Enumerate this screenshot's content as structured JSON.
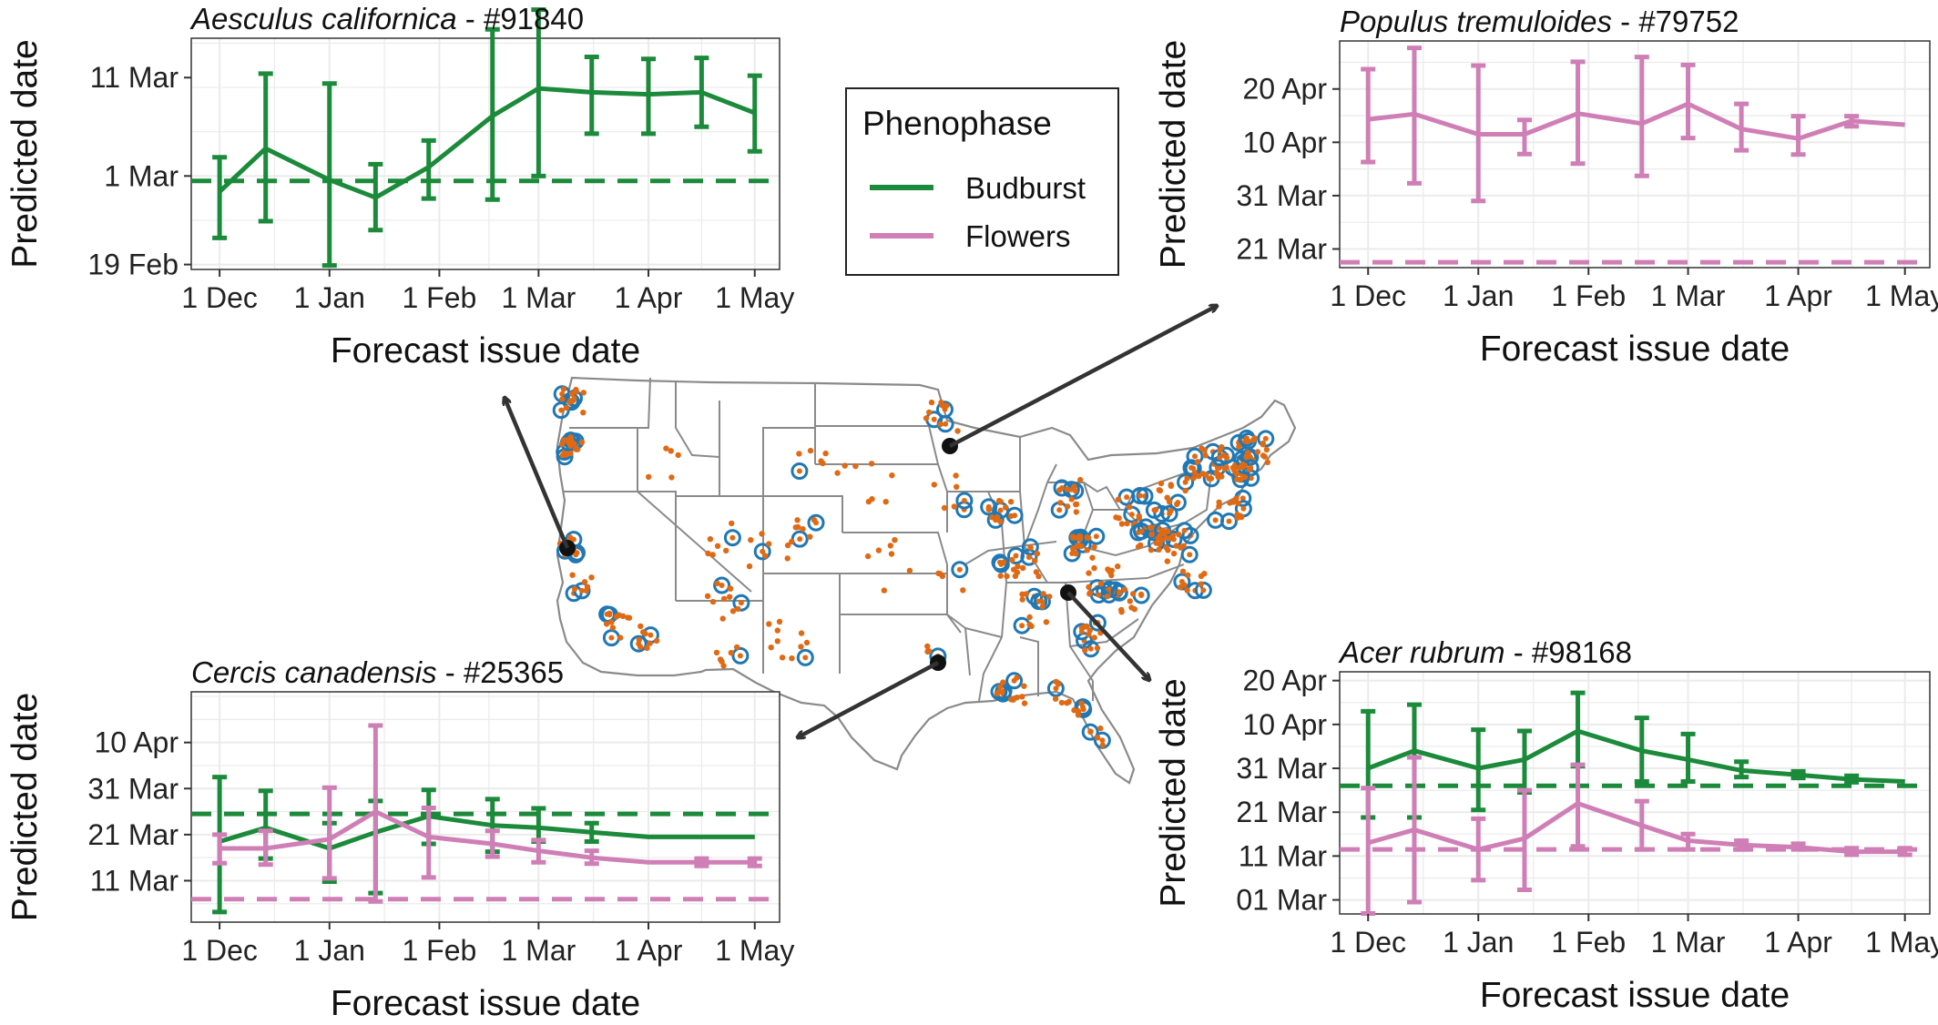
{
  "legend": {
    "title": "Phenophase",
    "items": [
      {
        "label": "Budburst",
        "color": "#1b8a3a"
      },
      {
        "label": "Flowers",
        "color": "#cf7fb6"
      }
    ]
  },
  "colors": {
    "budburst": "#1b8a3a",
    "flowers": "#cf7fb6",
    "site_dot": "#e06a14",
    "site_ring": "#1f78b4",
    "arrow": "#333333",
    "state_border": "#8a8a8a",
    "grid": "#ebebeb",
    "panel_border": "#333333"
  },
  "map": {
    "highlight_sites": [
      "Aesculus californica #91840",
      "Populus tremuloides #79752",
      "Cercis canadensis #25365",
      "Acer rubrum #98168"
    ]
  },
  "chart_data": [
    {
      "type": "line",
      "title_species": "Aesculus californica",
      "title_id": " - #91840",
      "xlabel": "Forecast issue date",
      "ylabel": "Predicted date",
      "x_ticks": [
        "1 Dec",
        "1 Jan",
        "1 Feb",
        "1 Mar",
        "1 Apr",
        "1 May"
      ],
      "x_tick_days": [
        0,
        31,
        62,
        90,
        121,
        151
      ],
      "xlim": [
        -8,
        158
      ],
      "y_ticks": [
        "19 Feb",
        "1 Mar",
        "11 Mar"
      ],
      "y_tick_days": [
        81,
        90,
        100
      ],
      "ylim": [
        80.5,
        104
      ],
      "series": [
        {
          "name": "Budburst",
          "color_key": "budburst",
          "points": [
            {
              "x": 0,
              "y": 88.4,
              "lo": 83.7,
              "hi": 91.9
            },
            {
              "x": 13,
              "y": 92.8,
              "lo": 85.4,
              "hi": 100.4
            },
            {
              "x": 31,
              "y": 89.6,
              "lo": 80.9,
              "hi": 99.4
            },
            {
              "x": 44,
              "y": 87.8,
              "lo": 84.5,
              "hi": 91.2
            },
            {
              "x": 59,
              "y": 90.9,
              "lo": 87.7,
              "hi": 93.6
            },
            {
              "x": 77,
              "y": 96.1,
              "lo": 87.6,
              "hi": 104.9
            },
            {
              "x": 90,
              "y": 98.9,
              "lo": 90.0,
              "hi": 106.9
            },
            {
              "x": 105,
              "y": 98.5,
              "lo": 94.3,
              "hi": 102.1
            },
            {
              "x": 121,
              "y": 98.3,
              "lo": 94.3,
              "hi": 101.9
            },
            {
              "x": 136,
              "y": 98.5,
              "lo": 95.0,
              "hi": 102.0
            },
            {
              "x": 151,
              "y": 96.4,
              "lo": 92.5,
              "hi": 100.2
            }
          ],
          "observed": 89.5
        }
      ]
    },
    {
      "type": "line",
      "title_species": "Populus tremuloides",
      "title_id": " - #79752",
      "xlabel": "Forecast issue date",
      "ylabel": "Predicted date",
      "x_ticks": [
        "1 Dec",
        "1 Jan",
        "1 Feb",
        "1 Mar",
        "1 Apr",
        "1 May"
      ],
      "x_tick_days": [
        0,
        31,
        62,
        90,
        121,
        151
      ],
      "xlim": [
        -8,
        158
      ],
      "y_ticks": [
        "21 Mar",
        "31 Mar",
        "10 Apr",
        "20 Apr"
      ],
      "y_tick_days": [
        110,
        120,
        130,
        140
      ],
      "ylim": [
        106.5,
        149
      ],
      "series": [
        {
          "name": "Flowers",
          "color_key": "flowers",
          "points": [
            {
              "x": 0,
              "y": 134.3,
              "lo": 126.3,
              "hi": 143.7
            },
            {
              "x": 13,
              "y": 135.3,
              "lo": 122.3,
              "hi": 147.7
            },
            {
              "x": 31,
              "y": 131.5,
              "lo": 119.0,
              "hi": 144.4
            },
            {
              "x": 44,
              "y": 131.5,
              "lo": 127.8,
              "hi": 134.2
            },
            {
              "x": 59,
              "y": 135.4,
              "lo": 126.0,
              "hi": 145.1
            },
            {
              "x": 77,
              "y": 133.5,
              "lo": 123.7,
              "hi": 146.0
            },
            {
              "x": 90,
              "y": 137.2,
              "lo": 130.8,
              "hi": 144.5
            },
            {
              "x": 105,
              "y": 132.5,
              "lo": 128.5,
              "hi": 137.2
            },
            {
              "x": 121,
              "y": 130.7,
              "lo": 127.7,
              "hi": 134.9
            },
            {
              "x": 136,
              "y": 134.0,
              "lo": 133.0,
              "hi": 134.9
            },
            {
              "x": 151,
              "y": 133.3
            }
          ],
          "observed": 107.5
        }
      ]
    },
    {
      "type": "line",
      "title_species": "Cercis canadensis",
      "title_id": " - #25365",
      "xlabel": "Forecast issue date",
      "ylabel": "Predicted date",
      "x_ticks": [
        "1 Dec",
        "1 Jan",
        "1 Feb",
        "1 Mar",
        "1 Apr",
        "1 May"
      ],
      "x_tick_days": [
        0,
        31,
        62,
        90,
        121,
        151
      ],
      "xlim": [
        -8,
        158
      ],
      "y_ticks": [
        "11 Mar",
        "21 Mar",
        "31 Mar",
        "10 Apr"
      ],
      "y_tick_days": [
        100,
        110,
        120,
        130
      ],
      "ylim": [
        91,
        141
      ],
      "series": [
        {
          "name": "Budburst",
          "color_key": "budburst",
          "points": [
            {
              "x": 0,
              "y": 108.5,
              "lo": 93.2,
              "hi": 122.5
            },
            {
              "x": 13,
              "y": 111.5,
              "lo": 104.8,
              "hi": 119.5
            },
            {
              "x": 31,
              "y": 107.0,
              "lo": 99.8,
              "hi": 112.5
            },
            {
              "x": 44,
              "y": 110.5,
              "lo": 97.3,
              "hi": 117.3
            },
            {
              "x": 59,
              "y": 114.0,
              "lo": 108.0,
              "hi": 119.7
            },
            {
              "x": 77,
              "y": 112.0,
              "lo": 106.3,
              "hi": 117.7
            },
            {
              "x": 90,
              "y": 111.5,
              "lo": 108.5,
              "hi": 115.7
            },
            {
              "x": 105,
              "y": 110.5,
              "lo": 108.5,
              "hi": 112.5
            },
            {
              "x": 121,
              "y": 109.5
            },
            {
              "x": 151,
              "y": 109.5
            }
          ],
          "observed": 114.5
        },
        {
          "name": "Flowers",
          "color_key": "flowers",
          "points": [
            {
              "x": 0,
              "y": 107.0,
              "lo": 103.8,
              "hi": 110.0
            },
            {
              "x": 13,
              "y": 107.0,
              "lo": 103.5,
              "hi": 110.8
            },
            {
              "x": 31,
              "y": 109.0,
              "lo": 100.5,
              "hi": 120.2
            },
            {
              "x": 44,
              "y": 115.0,
              "lo": 95.5,
              "hi": 133.7
            },
            {
              "x": 59,
              "y": 109.5,
              "lo": 100.7,
              "hi": 115.8
            },
            {
              "x": 77,
              "y": 108.0,
              "lo": 105.2,
              "hi": 110.8
            },
            {
              "x": 90,
              "y": 106.5,
              "lo": 104.0,
              "hi": 108.8
            },
            {
              "x": 105,
              "y": 105.0,
              "lo": 103.7,
              "hi": 106.5
            },
            {
              "x": 121,
              "y": 104.0
            },
            {
              "x": 136,
              "y": 104.0,
              "lo": 103.2,
              "hi": 104.8
            },
            {
              "x": 151,
              "y": 104.0,
              "lo": 103.2,
              "hi": 104.8
            }
          ],
          "observed": 96.0
        }
      ]
    },
    {
      "type": "line",
      "title_species": "Acer rubrum",
      "title_id": " - #98168",
      "xlabel": "Forecast issue date",
      "ylabel": "Predicted date",
      "x_ticks": [
        "1 Dec",
        "1 Jan",
        "1 Feb",
        "1 Mar",
        "1 Apr",
        "1 May"
      ],
      "x_tick_days": [
        0,
        31,
        62,
        90,
        121,
        151
      ],
      "xlim": [
        -8,
        158
      ],
      "y_ticks": [
        "01 Mar",
        "11 Mar",
        "21 Mar",
        "31 Mar",
        "10 Apr",
        "20 Apr"
      ],
      "y_tick_days": [
        90,
        100,
        110,
        120,
        130,
        140
      ],
      "ylim": [
        86.8,
        142
      ],
      "series": [
        {
          "name": "Budburst",
          "color_key": "budburst",
          "points": [
            {
              "x": 0,
              "y": 120.0,
              "lo": 108.8,
              "hi": 133.0
            },
            {
              "x": 13,
              "y": 124.0,
              "lo": 108.8,
              "hi": 134.5
            },
            {
              "x": 31,
              "y": 120.0,
              "lo": 110.5,
              "hi": 128.8
            },
            {
              "x": 44,
              "y": 122.0,
              "lo": 114.5,
              "hi": 128.5
            },
            {
              "x": 59,
              "y": 128.5,
              "lo": 120.5,
              "hi": 137.2
            },
            {
              "x": 77,
              "y": 124.0,
              "lo": 117.0,
              "hi": 131.5
            },
            {
              "x": 90,
              "y": 122.0,
              "lo": 117.0,
              "hi": 127.8
            },
            {
              "x": 105,
              "y": 119.5,
              "lo": 118.0,
              "hi": 121.5
            },
            {
              "x": 121,
              "y": 118.5,
              "lo": 117.8,
              "hi": 119.3
            },
            {
              "x": 136,
              "y": 117.5,
              "lo": 116.8,
              "hi": 118.3
            },
            {
              "x": 151,
              "y": 117.0
            }
          ],
          "observed": 116.0
        },
        {
          "name": "Flowers",
          "color_key": "flowers",
          "points": [
            {
              "x": 0,
              "y": 103.0,
              "lo": 86.9,
              "hi": 115.5
            },
            {
              "x": 13,
              "y": 106.0,
              "lo": 89.5,
              "hi": 122.5
            },
            {
              "x": 31,
              "y": 101.5,
              "lo": 94.5,
              "hi": 108.5
            },
            {
              "x": 44,
              "y": 104.0,
              "lo": 92.3,
              "hi": 115.0
            },
            {
              "x": 59,
              "y": 112.0,
              "lo": 102.2,
              "hi": 120.8
            },
            {
              "x": 77,
              "y": 107.0,
              "lo": 101.5,
              "hi": 112.5
            },
            {
              "x": 90,
              "y": 103.5,
              "lo": 101.5,
              "hi": 105.0
            },
            {
              "x": 105,
              "y": 102.5,
              "lo": 101.5,
              "hi": 103.5
            },
            {
              "x": 121,
              "y": 102.0,
              "lo": 101.5,
              "hi": 102.8
            },
            {
              "x": 136,
              "y": 101.0,
              "lo": 100.3,
              "hi": 101.8
            },
            {
              "x": 151,
              "y": 101.0,
              "lo": 100.3,
              "hi": 101.8
            }
          ],
          "observed": 101.5
        }
      ]
    }
  ]
}
